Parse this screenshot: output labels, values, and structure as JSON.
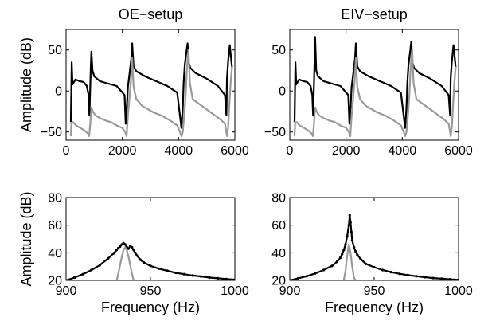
{
  "chart_data": [
    {
      "type": "line",
      "title": "OE−setup",
      "ylabel": "Amplitude (dB)",
      "xlabel": "",
      "xlim": [
        0,
        6000
      ],
      "ylim": [
        -60,
        75
      ],
      "xticks": [
        0,
        2000,
        4000,
        6000
      ],
      "xtick_labels": [
        "0",
        "2000",
        "4000",
        "6000"
      ],
      "yticks": [
        -50,
        0,
        50
      ],
      "ytick_labels": [
        "−50",
        "0",
        "50"
      ],
      "grid": false,
      "series": [
        {
          "color": "#000000",
          "style": "line",
          "x": [
            170,
            200,
            230,
            330,
            480,
            620,
            740,
            800,
            830,
            880,
            900,
            940,
            1000,
            1200,
            1500,
            1800,
            2080,
            2120,
            2150,
            2200,
            2270,
            2320,
            2350,
            2400,
            2500,
            2800,
            3200,
            3600,
            3950,
            4100,
            4150,
            4180,
            4220,
            4280,
            4320,
            4360,
            4420,
            4600,
            5000,
            5400,
            5650,
            5700,
            5720,
            5760,
            5820,
            5900
          ],
          "y": [
            -38,
            35,
            8,
            14,
            12,
            11,
            6,
            -5,
            -30,
            30,
            48,
            25,
            18,
            12,
            9,
            6,
            -5,
            -40,
            -25,
            5,
            25,
            40,
            58,
            30,
            24,
            18,
            12,
            6,
            -2,
            -45,
            -20,
            10,
            32,
            48,
            58,
            35,
            28,
            22,
            15,
            6,
            -5,
            -30,
            15,
            35,
            56,
            28
          ]
        },
        {
          "color": "#999999",
          "style": "line",
          "x": [
            170,
            190,
            250,
            350,
            500,
            650,
            780,
            820,
            860,
            900,
            950,
            1050,
            1200,
            1400,
            1600,
            1800,
            2000,
            2100,
            2150,
            2200,
            2250,
            2300,
            2350,
            2400,
            2500,
            2700,
            2900,
            3100,
            3400,
            3700,
            3950,
            4050,
            4100,
            4150,
            4200,
            4250,
            4300,
            4350,
            4400,
            4500,
            4700,
            4900,
            5100,
            5300,
            5500,
            5650,
            5700,
            5720,
            5760,
            5800,
            5850,
            5900
          ],
          "y": [
            -55,
            -40,
            -38,
            -42,
            -45,
            -48,
            -52,
            -55,
            -40,
            -20,
            -25,
            -30,
            -33,
            -36,
            -38,
            -42,
            -45,
            -50,
            -55,
            -30,
            -10,
            10,
            40,
            5,
            -10,
            -18,
            -22,
            -26,
            -30,
            -36,
            -42,
            -50,
            -55,
            -50,
            -30,
            -5,
            30,
            50,
            10,
            -10,
            -15,
            -20,
            -25,
            -30,
            -35,
            -40,
            -50,
            -55,
            -45,
            -20,
            10,
            30
          ]
        }
      ]
    },
    {
      "type": "line",
      "title": "EIV−setup",
      "ylabel": "",
      "xlabel": "",
      "xlim": [
        0,
        6000
      ],
      "ylim": [
        -60,
        75
      ],
      "xticks": [
        0,
        2000,
        4000,
        6000
      ],
      "xtick_labels": [
        "0",
        "2000",
        "4000",
        "6000"
      ],
      "yticks": [
        -50,
        0,
        50
      ],
      "ytick_labels": [
        "−50",
        "0",
        "50"
      ],
      "grid": false,
      "series": [
        {
          "color": "#000000",
          "style": "line",
          "x": [
            170,
            200,
            230,
            330,
            480,
            620,
            740,
            800,
            830,
            880,
            900,
            940,
            1000,
            1200,
            1500,
            1800,
            2080,
            2120,
            2150,
            2200,
            2270,
            2320,
            2350,
            2400,
            2500,
            2800,
            3200,
            3600,
            3950,
            4100,
            4150,
            4180,
            4220,
            4280,
            4320,
            4360,
            4420,
            4600,
            5000,
            5400,
            5650,
            5700,
            5720,
            5760,
            5820,
            5900
          ],
          "y": [
            -38,
            35,
            8,
            14,
            12,
            11,
            6,
            -5,
            -30,
            35,
            66,
            25,
            18,
            12,
            9,
            6,
            -5,
            -40,
            -25,
            5,
            25,
            40,
            58,
            30,
            24,
            18,
            12,
            6,
            -2,
            -45,
            -20,
            10,
            32,
            48,
            60,
            35,
            28,
            22,
            15,
            6,
            -5,
            -30,
            15,
            35,
            56,
            28
          ]
        },
        {
          "color": "#999999",
          "style": "line",
          "x": [
            170,
            190,
            250,
            350,
            500,
            650,
            780,
            820,
            860,
            900,
            950,
            1050,
            1200,
            1400,
            1600,
            1800,
            2000,
            2100,
            2150,
            2200,
            2250,
            2300,
            2350,
            2400,
            2500,
            2700,
            2900,
            3100,
            3400,
            3700,
            3950,
            4050,
            4100,
            4150,
            4200,
            4250,
            4300,
            4350,
            4400,
            4500,
            4700,
            4900,
            5100,
            5300,
            5500,
            5650,
            5700,
            5720,
            5760,
            5800,
            5850,
            5900
          ],
          "y": [
            -55,
            -40,
            -38,
            -42,
            -45,
            -48,
            -52,
            -55,
            -40,
            -20,
            -25,
            -30,
            -33,
            -36,
            -38,
            -42,
            -45,
            -50,
            -55,
            -30,
            -10,
            10,
            40,
            5,
            -10,
            -18,
            -22,
            -26,
            -30,
            -36,
            -42,
            -50,
            -55,
            -50,
            -30,
            -5,
            30,
            50,
            10,
            -10,
            -15,
            -20,
            -25,
            -30,
            -35,
            -40,
            -50,
            -55,
            -45,
            -20,
            10,
            30
          ]
        }
      ]
    },
    {
      "type": "line",
      "title": "",
      "ylabel": "Amplitude (dB)",
      "xlabel": "Frequency (Hz)",
      "xlim": [
        900,
        1000
      ],
      "ylim": [
        20,
        80
      ],
      "xticks": [
        900,
        950,
        1000
      ],
      "xtick_labels": [
        "900",
        "950",
        "1000"
      ],
      "yticks": [
        20,
        40,
        60,
        80
      ],
      "ytick_labels": [
        "20",
        "40",
        "60",
        "80"
      ],
      "grid": false,
      "series": [
        {
          "color": "#000000",
          "style": "dots",
          "x": [
            900,
            905,
            910,
            915,
            920,
            925,
            928,
            930,
            931,
            932,
            933,
            934,
            935,
            936,
            937,
            938,
            939,
            940,
            941,
            942,
            944,
            946,
            950,
            955,
            960,
            965,
            970,
            975,
            980,
            985,
            990,
            995,
            1000
          ],
          "y": [
            20,
            22,
            24.5,
            27.5,
            31,
            36,
            39.5,
            42,
            43.5,
            44.5,
            46,
            47,
            46,
            44,
            43,
            45,
            44,
            42,
            40,
            38,
            35,
            33,
            30.5,
            28.5,
            27,
            25.5,
            24.5,
            23.5,
            22.8,
            22,
            21.5,
            21,
            20.5
          ]
        },
        {
          "color": "#999999",
          "style": "line",
          "x": [
            930,
            931,
            932,
            933,
            934,
            935,
            936,
            937,
            938,
            939,
            940,
            941
          ],
          "y": [
            20,
            25,
            31,
            37,
            42,
            44,
            42,
            37,
            31,
            25,
            20,
            20
          ]
        }
      ]
    },
    {
      "type": "line",
      "title": "",
      "ylabel": "",
      "xlabel": "Frequency (Hz)",
      "xlim": [
        900,
        1000
      ],
      "ylim": [
        20,
        80
      ],
      "xticks": [
        900,
        950,
        1000
      ],
      "xtick_labels": [
        "900",
        "950",
        "1000"
      ],
      "yticks": [
        20,
        40,
        60,
        80
      ],
      "ytick_labels": [
        "20",
        "40",
        "60",
        "80"
      ],
      "grid": false,
      "series": [
        {
          "color": "#000000",
          "style": "dots",
          "x": [
            900,
            905,
            910,
            915,
            920,
            925,
            928,
            930,
            931,
            932,
            933,
            934,
            935,
            935.5,
            936,
            936.5,
            937,
            938,
            939,
            940,
            942,
            945,
            950,
            955,
            960,
            965,
            970,
            975,
            980,
            985,
            990,
            995,
            1000
          ],
          "y": [
            20,
            21.5,
            23,
            25,
            27.5,
            30.5,
            33.5,
            36.5,
            39,
            42,
            46,
            52,
            60,
            67,
            62,
            55,
            49,
            44,
            41,
            38.5,
            35.5,
            32,
            29.5,
            27.5,
            26,
            24.8,
            23.8,
            23,
            22.3,
            21.7,
            21.2,
            20.8,
            20.4
          ]
        },
        {
          "color": "#999999",
          "style": "line",
          "x": [
            932,
            933,
            934,
            935,
            936,
            937,
            938,
            939
          ],
          "y": [
            20,
            27,
            38,
            46,
            40,
            30,
            22,
            20
          ]
        }
      ]
    }
  ]
}
